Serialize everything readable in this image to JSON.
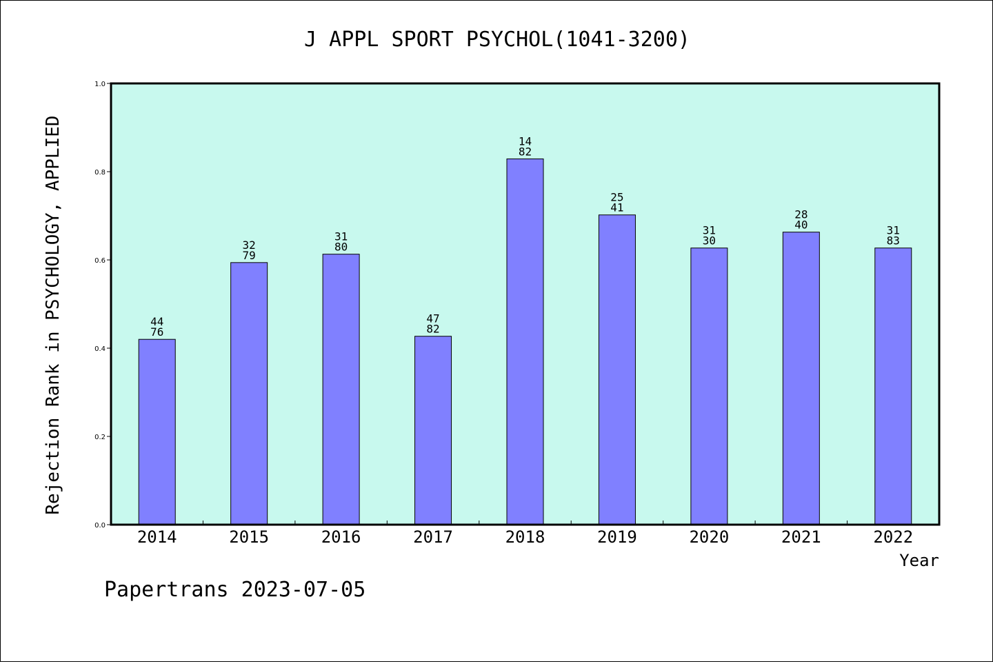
{
  "chart_data": {
    "type": "bar",
    "title": "J APPL SPORT PSYCHOL(1041-3200)",
    "xlabel": "Year",
    "ylabel": "Rejection Rank in PSYCHOLOGY, APPLIED",
    "ylim": [
      0,
      1.0
    ],
    "yticks": [
      "0.0",
      "0.2",
      "0.4",
      "0.6",
      "0.8",
      "1.0"
    ],
    "ytick_values": [
      0,
      0.2,
      0.4,
      0.6,
      0.8,
      1.0
    ],
    "categories": [
      "2014",
      "2015",
      "2016",
      "2017",
      "2018",
      "2019",
      "2020",
      "2021",
      "2022"
    ],
    "values": [
      0.42,
      0.594,
      0.613,
      0.427,
      0.829,
      0.702,
      0.627,
      0.663,
      0.627
    ],
    "labels_top": [
      "44",
      "32",
      "31",
      "47",
      "14",
      "25",
      "31",
      "28",
      "31"
    ],
    "labels_bottom": [
      "76",
      "79",
      "80",
      "82",
      "82",
      "41",
      "30",
      "40",
      "83"
    ],
    "grid": false,
    "plot_background": "#c8f9ee",
    "bar_color": "#8080ff",
    "bar_edge_color": "#000000"
  },
  "footer": "Papertrans 2023-07-05"
}
